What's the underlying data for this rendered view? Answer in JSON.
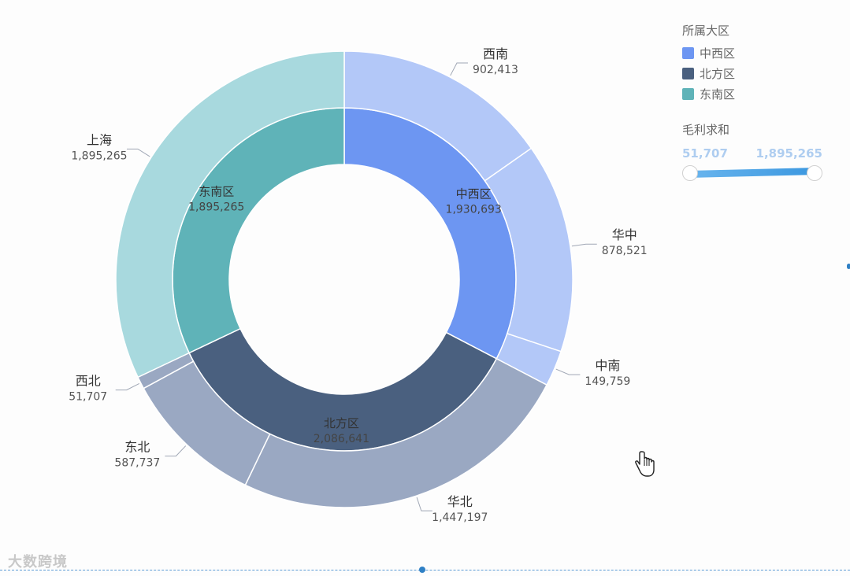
{
  "chart_data": {
    "type": "sunburst",
    "inner": [
      {
        "name": "中西区",
        "value": 1930693,
        "label_value": "1,930,693",
        "color": "#6d96f2"
      },
      {
        "name": "北方区",
        "value": 2086641,
        "label_value": "2,086,641",
        "color": "#4a607f"
      },
      {
        "name": "东南区",
        "value": 1895265,
        "label_value": "1,895,265",
        "color": "#5fb3b8"
      }
    ],
    "outer": [
      {
        "name": "西南",
        "value": 902413,
        "label_value": "902,413",
        "parent": "中西区",
        "color": "#b3c8f8"
      },
      {
        "name": "华中",
        "value": 878521,
        "label_value": "878,521",
        "parent": "中西区",
        "color": "#b3c8f8"
      },
      {
        "name": "中南",
        "value": 149759,
        "label_value": "149,759",
        "parent": "中西区",
        "color": "#b3c8f8"
      },
      {
        "name": "华北",
        "value": 1447197,
        "label_value": "1,447,197",
        "parent": "北方区",
        "color": "#9aa8c2"
      },
      {
        "name": "东北",
        "value": 587737,
        "label_value": "587,737",
        "parent": "北方区",
        "color": "#9aa8c2"
      },
      {
        "name": "西北",
        "value": 51707,
        "label_value": "51,707",
        "parent": "北方区",
        "color": "#9aa8c2"
      },
      {
        "name": "上海",
        "value": 1895265,
        "label_value": "1,895,265",
        "parent": "东南区",
        "color": "#a8d9de"
      }
    ]
  },
  "legend": {
    "title": "所属大区",
    "items": [
      {
        "label": "中西区",
        "color": "#6d96f2"
      },
      {
        "label": "北方区",
        "color": "#4a607f"
      },
      {
        "label": "东南区",
        "color": "#5fb3b8"
      }
    ]
  },
  "range_filter": {
    "title": "毛利求和",
    "min_label": "51,707",
    "max_label": "1,895,265"
  },
  "watermark": "大数跨境"
}
